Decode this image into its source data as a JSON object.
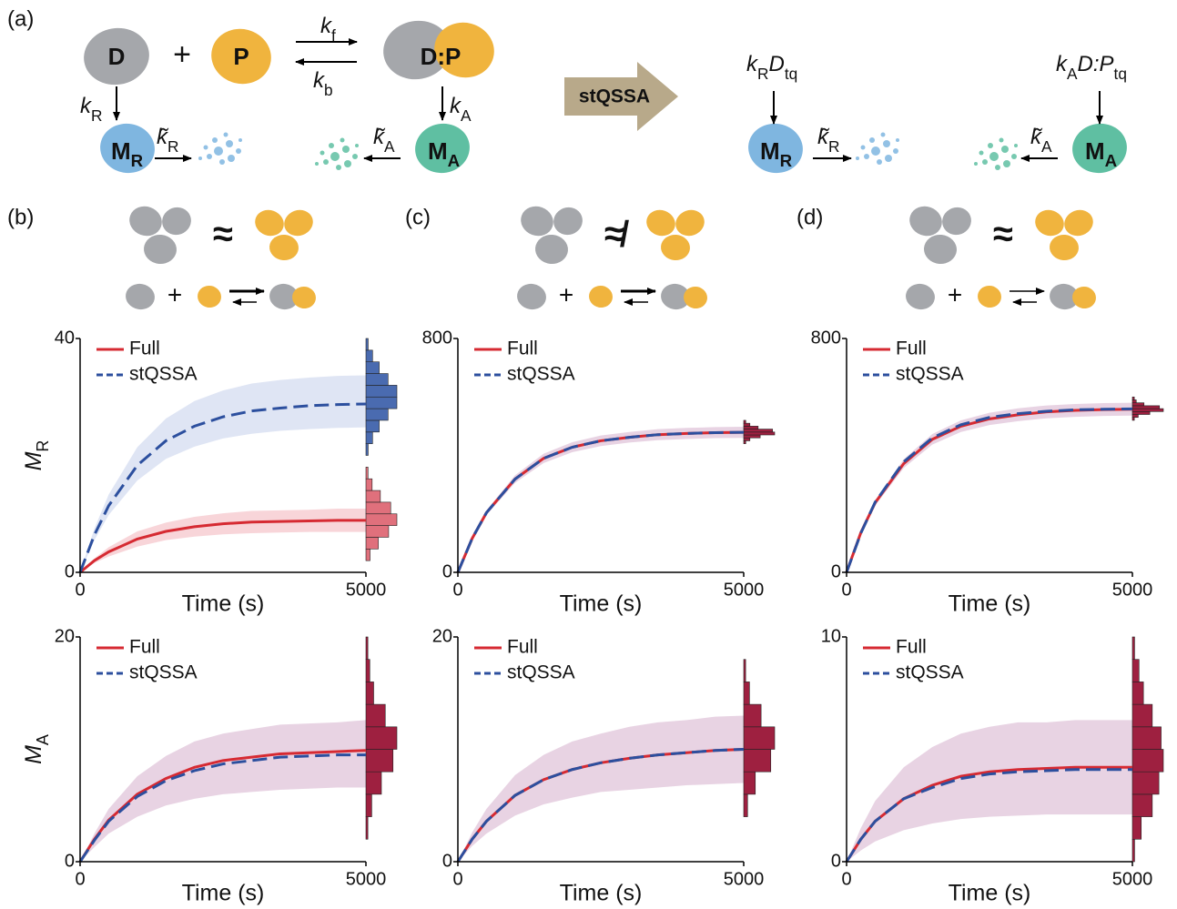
{
  "diagram": {
    "label": "(a)",
    "d": "D",
    "p": "P",
    "dp": "D:P",
    "plus": "+",
    "stqssa": "stQSSA",
    "kf": {
      "text": [
        "k",
        "f"
      ],
      "sub": [
        false,
        true
      ]
    },
    "kb": {
      "text": [
        "k",
        "b"
      ],
      "sub": [
        false,
        true
      ]
    },
    "kR": {
      "text": [
        "k",
        "R"
      ],
      "sub": [
        false,
        true
      ]
    },
    "kA": {
      "text": [
        "k",
        "A"
      ],
      "sub": [
        false,
        true
      ]
    },
    "ktR": {
      "text": [
        "k̃",
        "R"
      ],
      "sub": [
        false,
        true
      ]
    },
    "ktA": {
      "text": [
        "k̃",
        "A"
      ],
      "sub": [
        false,
        true
      ]
    },
    "mR": {
      "text": [
        "M",
        "R"
      ],
      "sub": [
        false,
        true
      ]
    },
    "mA": {
      "text": [
        "M",
        "A"
      ],
      "sub": [
        false,
        true
      ]
    },
    "kRDtq": {
      "text": [
        "k",
        "R",
        "D",
        "tq"
      ],
      "sub": [
        false,
        true,
        false,
        true
      ]
    },
    "kADPtq": {
      "text": [
        "k",
        "A",
        "D:P",
        "tq"
      ],
      "sub": [
        false,
        true,
        false,
        true
      ]
    }
  },
  "conditions": [
    {
      "label": "(b)",
      "relation": "≈",
      "plus": "+"
    },
    {
      "label": "(c)",
      "relation": "≉",
      "plus": "+"
    },
    {
      "label": "(d)",
      "relation": "≈",
      "plus": "+"
    }
  ],
  "chart_data": [
    {
      "type": "line",
      "x": [
        0,
        250,
        500,
        1000,
        1500,
        2000,
        2500,
        3000,
        3500,
        4000,
        4500,
        5000
      ],
      "xlim": [
        0,
        5000
      ],
      "xticks": [
        0,
        5000
      ],
      "ylim": [
        0,
        40
      ],
      "yticks": [
        0,
        40
      ],
      "x_label": "Time (s)",
      "y_label": {
        "text": [
          "M",
          "R"
        ],
        "sub": [
          false,
          true
        ]
      },
      "series": [
        {
          "name": "Full",
          "color": "#d62a32",
          "dash": false,
          "band_color": "#f3b9c0",
          "hist_color": "#e0707c",
          "values": [
            0,
            2.0,
            3.5,
            5.7,
            7.0,
            7.8,
            8.3,
            8.6,
            8.7,
            8.8,
            8.9,
            8.9
          ],
          "band_lower": [
            0,
            1.6,
            2.7,
            4.4,
            5.5,
            6.1,
            6.5,
            6.7,
            6.8,
            6.9,
            6.9,
            6.9
          ],
          "band_upper": [
            0,
            2.4,
            4.3,
            7.0,
            8.5,
            9.5,
            10.1,
            10.5,
            10.6,
            10.7,
            10.9,
            10.9
          ],
          "hist_bins": [
            2,
            4,
            6,
            8,
            10,
            12,
            14,
            16,
            18
          ],
          "hist_counts": [
            2,
            6,
            11,
            15,
            12,
            7,
            3,
            1
          ]
        },
        {
          "name": "stQSSA",
          "color": "#2c4f9e",
          "dash": true,
          "band_color": "#c9d3ec",
          "hist_color": "#4a6bb0",
          "values": [
            0,
            6.4,
            11.4,
            18.3,
            22.5,
            25.0,
            26.6,
            27.6,
            28.1,
            28.5,
            28.7,
            28.8
          ],
          "band_lower": [
            0,
            5.5,
            9.8,
            15.7,
            19.4,
            21.5,
            22.9,
            23.7,
            24.2,
            24.5,
            24.7,
            24.8
          ],
          "band_upper": [
            0,
            7.5,
            13.3,
            21.4,
            26.3,
            29.3,
            31.1,
            32.3,
            32.9,
            33.3,
            33.6,
            33.7
          ],
          "hist_bins": [
            20,
            22,
            24,
            26,
            28,
            30,
            32,
            34,
            36,
            38,
            40
          ],
          "hist_counts": [
            1,
            3,
            6,
            10,
            14,
            14,
            10,
            6,
            3,
            1
          ]
        }
      ]
    },
    {
      "type": "line",
      "x": [
        0,
        250,
        500,
        1000,
        1500,
        2000,
        2500,
        3000,
        3500,
        4000,
        4500,
        5000
      ],
      "xlim": [
        0,
        5000
      ],
      "xticks": [
        0,
        5000
      ],
      "ylim": [
        0,
        800
      ],
      "yticks": [
        0,
        800
      ],
      "x_label": "Time (s)",
      "series": [
        {
          "name": "Full",
          "color": "#d62a32",
          "dash": false,
          "band_color": "#d9b6d0",
          "hist_color": "#9e2040",
          "values": [
            0,
            116,
            204,
            319,
            390,
            428,
            450,
            462,
            471,
            475,
            478,
            479
          ],
          "band_lower": [
            0,
            111,
            196,
            306,
            374,
            411,
            432,
            444,
            452,
            456,
            459,
            460
          ],
          "band_upper": [
            0,
            121,
            212,
            332,
            406,
            445,
            468,
            480,
            490,
            494,
            497,
            498
          ],
          "hist_bins": [
            440,
            450,
            460,
            470,
            480,
            490,
            500,
            510,
            520
          ],
          "hist_counts": [
            1,
            3,
            8,
            15,
            14,
            7,
            3,
            1
          ]
        },
        {
          "name": "stQSSA",
          "color": "#2c4f9e",
          "dash": true,
          "values": [
            0,
            116,
            204,
            319,
            390,
            428,
            450,
            462,
            471,
            475,
            478,
            479
          ]
        }
      ]
    },
    {
      "type": "line",
      "x": [
        0,
        250,
        500,
        1000,
        1500,
        2000,
        2500,
        3000,
        3500,
        4000,
        4500,
        5000
      ],
      "xlim": [
        0,
        5000
      ],
      "xticks": [
        0,
        5000
      ],
      "ylim": [
        0,
        800
      ],
      "yticks": [
        0,
        800
      ],
      "x_label": "Time (s)",
      "series": [
        {
          "name": "Full",
          "color": "#d62a32",
          "dash": false,
          "band_color": "#d9b6d0",
          "hist_color": "#9e2040",
          "values": [
            0,
            136,
            238,
            372,
            455,
            500,
            525,
            539,
            549,
            554,
            557,
            558
          ],
          "band_lower": [
            0,
            131,
            228,
            357,
            437,
            480,
            504,
            517,
            527,
            532,
            535,
            536
          ],
          "band_upper": [
            0,
            141,
            248,
            387,
            473,
            520,
            546,
            561,
            571,
            576,
            579,
            580
          ],
          "hist_bins": [
            520,
            530,
            540,
            550,
            560,
            570,
            580,
            590,
            600
          ],
          "hist_counts": [
            1,
            3,
            9,
            16,
            14,
            6,
            2,
            1
          ]
        },
        {
          "name": "stQSSA",
          "color": "#2c4f9e",
          "dash": true,
          "values": [
            0,
            134,
            240,
            378,
            460,
            505,
            530,
            543,
            551,
            556,
            558,
            559
          ]
        }
      ]
    },
    {
      "type": "line",
      "x": [
        0,
        250,
        500,
        1000,
        1500,
        2000,
        2500,
        3000,
        3500,
        4000,
        4500,
        5000
      ],
      "xlim": [
        0,
        5000
      ],
      "xticks": [
        0,
        5000
      ],
      "ylim": [
        0,
        20
      ],
      "yticks": [
        0,
        20
      ],
      "x_label": "Time (s)",
      "y_label": {
        "text": [
          "M",
          "A"
        ],
        "sub": [
          false,
          true
        ]
      },
      "series": [
        {
          "name": "Full",
          "color": "#d62a32",
          "dash": false,
          "band_color": "#d9b6d0",
          "hist_color": "#9e2040",
          "values": [
            0,
            2.0,
            3.7,
            6.0,
            7.4,
            8.4,
            9.0,
            9.3,
            9.6,
            9.7,
            9.8,
            9.9
          ],
          "band_lower": [
            0,
            1.3,
            2.5,
            4.0,
            5.0,
            5.6,
            6.0,
            6.2,
            6.4,
            6.5,
            6.6,
            6.6
          ],
          "band_upper": [
            0,
            2.5,
            4.7,
            7.6,
            9.4,
            10.7,
            11.4,
            11.8,
            12.2,
            12.3,
            12.4,
            12.6
          ],
          "hist_bins": [
            2,
            4,
            6,
            8,
            10,
            12,
            14,
            16,
            18,
            20
          ],
          "hist_counts": [
            1,
            3,
            8,
            14,
            16,
            10,
            4,
            2,
            1
          ]
        },
        {
          "name": "stQSSA",
          "color": "#2c4f9e",
          "dash": true,
          "values": [
            0,
            1.9,
            3.6,
            5.8,
            7.2,
            8.1,
            8.7,
            9.0,
            9.3,
            9.4,
            9.5,
            9.5
          ]
        }
      ]
    },
    {
      "type": "line",
      "x": [
        0,
        250,
        500,
        1000,
        1500,
        2000,
        2500,
        3000,
        3500,
        4000,
        4500,
        5000
      ],
      "xlim": [
        0,
        5000
      ],
      "xticks": [
        0,
        5000
      ],
      "ylim": [
        0,
        20
      ],
      "yticks": [
        0,
        20
      ],
      "x_label": "Time (s)",
      "series": [
        {
          "name": "Full",
          "color": "#d62a32",
          "dash": false,
          "band_color": "#d9b6d0",
          "hist_color": "#9e2040",
          "values": [
            0,
            2.0,
            3.6,
            5.9,
            7.3,
            8.2,
            8.8,
            9.2,
            9.5,
            9.7,
            9.9,
            10.0
          ],
          "band_lower": [
            0,
            1.4,
            2.5,
            4.1,
            5.1,
            5.7,
            6.2,
            6.4,
            6.6,
            6.8,
            6.9,
            7.0
          ],
          "band_upper": [
            0,
            2.6,
            4.7,
            7.7,
            9.5,
            10.7,
            11.4,
            12.0,
            12.4,
            12.6,
            12.9,
            13.0
          ],
          "hist_bins": [
            4,
            6,
            8,
            10,
            12,
            14,
            16,
            18
          ],
          "hist_counts": [
            2,
            6,
            14,
            16,
            9,
            3,
            1
          ]
        },
        {
          "name": "stQSSA",
          "color": "#2c4f9e",
          "dash": true,
          "values": [
            0,
            2.0,
            3.6,
            5.9,
            7.3,
            8.2,
            8.8,
            9.2,
            9.5,
            9.7,
            9.9,
            10.0
          ]
        }
      ]
    },
    {
      "type": "line",
      "x": [
        0,
        250,
        500,
        1000,
        1500,
        2000,
        2500,
        3000,
        3500,
        4000,
        4500,
        5000
      ],
      "xlim": [
        0,
        5000
      ],
      "xticks": [
        0,
        5000
      ],
      "ylim": [
        0,
        10
      ],
      "yticks": [
        0,
        10
      ],
      "x_label": "Time (s)",
      "series": [
        {
          "name": "Full",
          "color": "#d62a32",
          "dash": false,
          "band_color": "#d9b6d0",
          "hist_color": "#9e2040",
          "values": [
            0,
            1.0,
            1.8,
            2.8,
            3.4,
            3.8,
            4.0,
            4.1,
            4.15,
            4.2,
            4.2,
            4.2
          ],
          "band_lower": [
            0,
            0.5,
            0.9,
            1.4,
            1.7,
            1.9,
            2.0,
            2.05,
            2.1,
            2.1,
            2.1,
            2.1
          ],
          "band_upper": [
            0,
            1.5,
            2.7,
            4.2,
            5.1,
            5.7,
            6.0,
            6.2,
            6.2,
            6.3,
            6.3,
            6.3
          ],
          "hist_bins": [
            0,
            1,
            2,
            3,
            4,
            5,
            6,
            7,
            8,
            9,
            10
          ],
          "hist_counts": [
            1,
            4,
            9,
            12,
            14,
            13,
            9,
            5,
            3,
            1
          ]
        },
        {
          "name": "stQSSA",
          "color": "#2c4f9e",
          "dash": true,
          "values": [
            0,
            1.0,
            1.8,
            2.8,
            3.3,
            3.7,
            3.9,
            4.0,
            4.05,
            4.1,
            4.1,
            4.1
          ]
        }
      ]
    }
  ]
}
